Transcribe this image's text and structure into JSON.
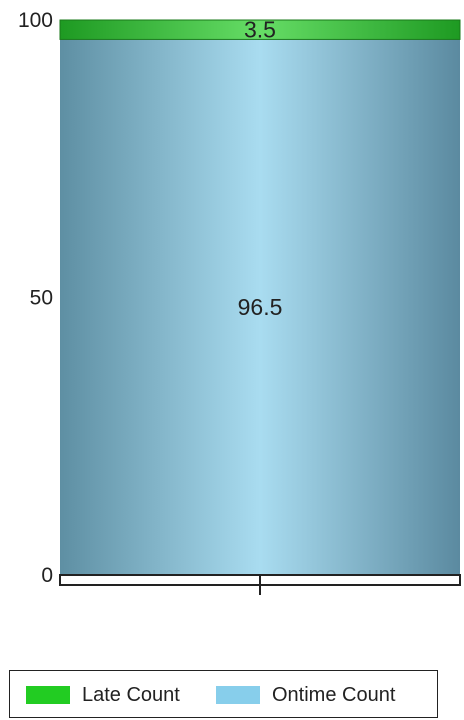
{
  "chart_data": {
    "type": "bar",
    "stacked": true,
    "categories": [
      ""
    ],
    "series": [
      {
        "name": "Ontime Count",
        "values": [
          96.5
        ],
        "color": "#87ceeb"
      },
      {
        "name": "Late Count",
        "values": [
          3.5
        ],
        "color": "#22cc22"
      }
    ],
    "data_labels": [
      "96.5",
      "3.5"
    ],
    "ylim": [
      0,
      100
    ],
    "yticks": [
      "0",
      "50",
      "100"
    ],
    "title": "",
    "xlabel": "",
    "ylabel": "",
    "legend_position": "bottom",
    "grid": false
  },
  "legend": {
    "items": [
      {
        "label": "Late Count",
        "color": "#22cc22"
      },
      {
        "label": "Ontime Count",
        "color": "#87ceeb"
      }
    ]
  }
}
